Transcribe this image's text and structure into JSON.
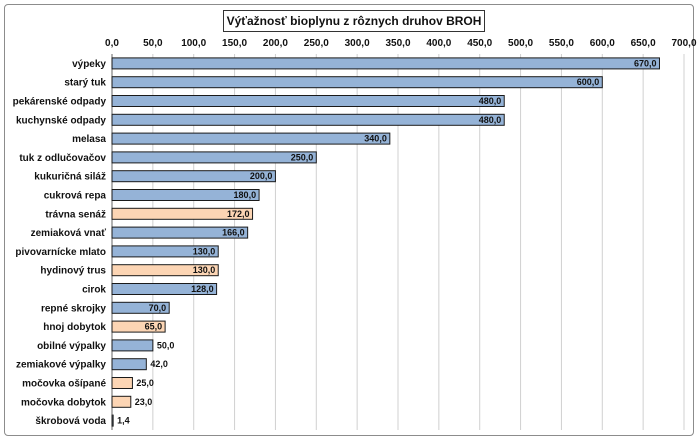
{
  "chart_data": {
    "type": "bar",
    "orientation": "horizontal",
    "title": "Výťažnosť bioplynu z rôznych druhov BROH",
    "xlim": [
      0,
      700
    ],
    "x_ticks": [
      "0,0",
      "50,0",
      "100,0",
      "150,0",
      "200,0",
      "250,0",
      "300,0",
      "350,0",
      "400,0",
      "450,0",
      "500,0",
      "550,0",
      "600,0",
      "650,0",
      "700,0"
    ],
    "x_axis_position": "top",
    "grid": true,
    "colors": {
      "blue": "#95b3d7",
      "orange": "#fcd5b4",
      "bar_edge": "#1a1a1a",
      "grid": "#d0d0d0"
    },
    "categories": [
      "výpeky",
      "starý tuk",
      "pekárenské odpady",
      "kuchynské odpady",
      "melasa",
      "tuk z odlučovačov",
      "kukuričná siláž",
      "cukrová repa",
      "trávna senáž",
      "zemiaková vnať",
      "pivovarnícke mlato",
      "hydinový trus",
      "cirok",
      "repné skrojky",
      "hnoj dobytok",
      "obilné výpalky",
      "zemiakové výpalky",
      "močovka ošípané",
      "močovka dobytok",
      "škrobová voda"
    ],
    "values": [
      670,
      600,
      480,
      480,
      340,
      250,
      200,
      180,
      172,
      166,
      130,
      130,
      128,
      70,
      65,
      50,
      42,
      25,
      23,
      1.4
    ],
    "value_labels": [
      "670,0",
      "600,0",
      "480,0",
      "480,0",
      "340,0",
      "250,0",
      "200,0",
      "180,0",
      "172,0",
      "166,0",
      "130,0",
      "130,0",
      "128,0",
      "70,0",
      "65,0",
      "50,0",
      "42,0",
      "25,0",
      "23,0",
      "1,4"
    ],
    "bar_colors": [
      "blue",
      "blue",
      "blue",
      "blue",
      "blue",
      "blue",
      "blue",
      "blue",
      "orange",
      "blue",
      "blue",
      "orange",
      "blue",
      "blue",
      "orange",
      "blue",
      "blue",
      "orange",
      "orange",
      "blue"
    ]
  }
}
